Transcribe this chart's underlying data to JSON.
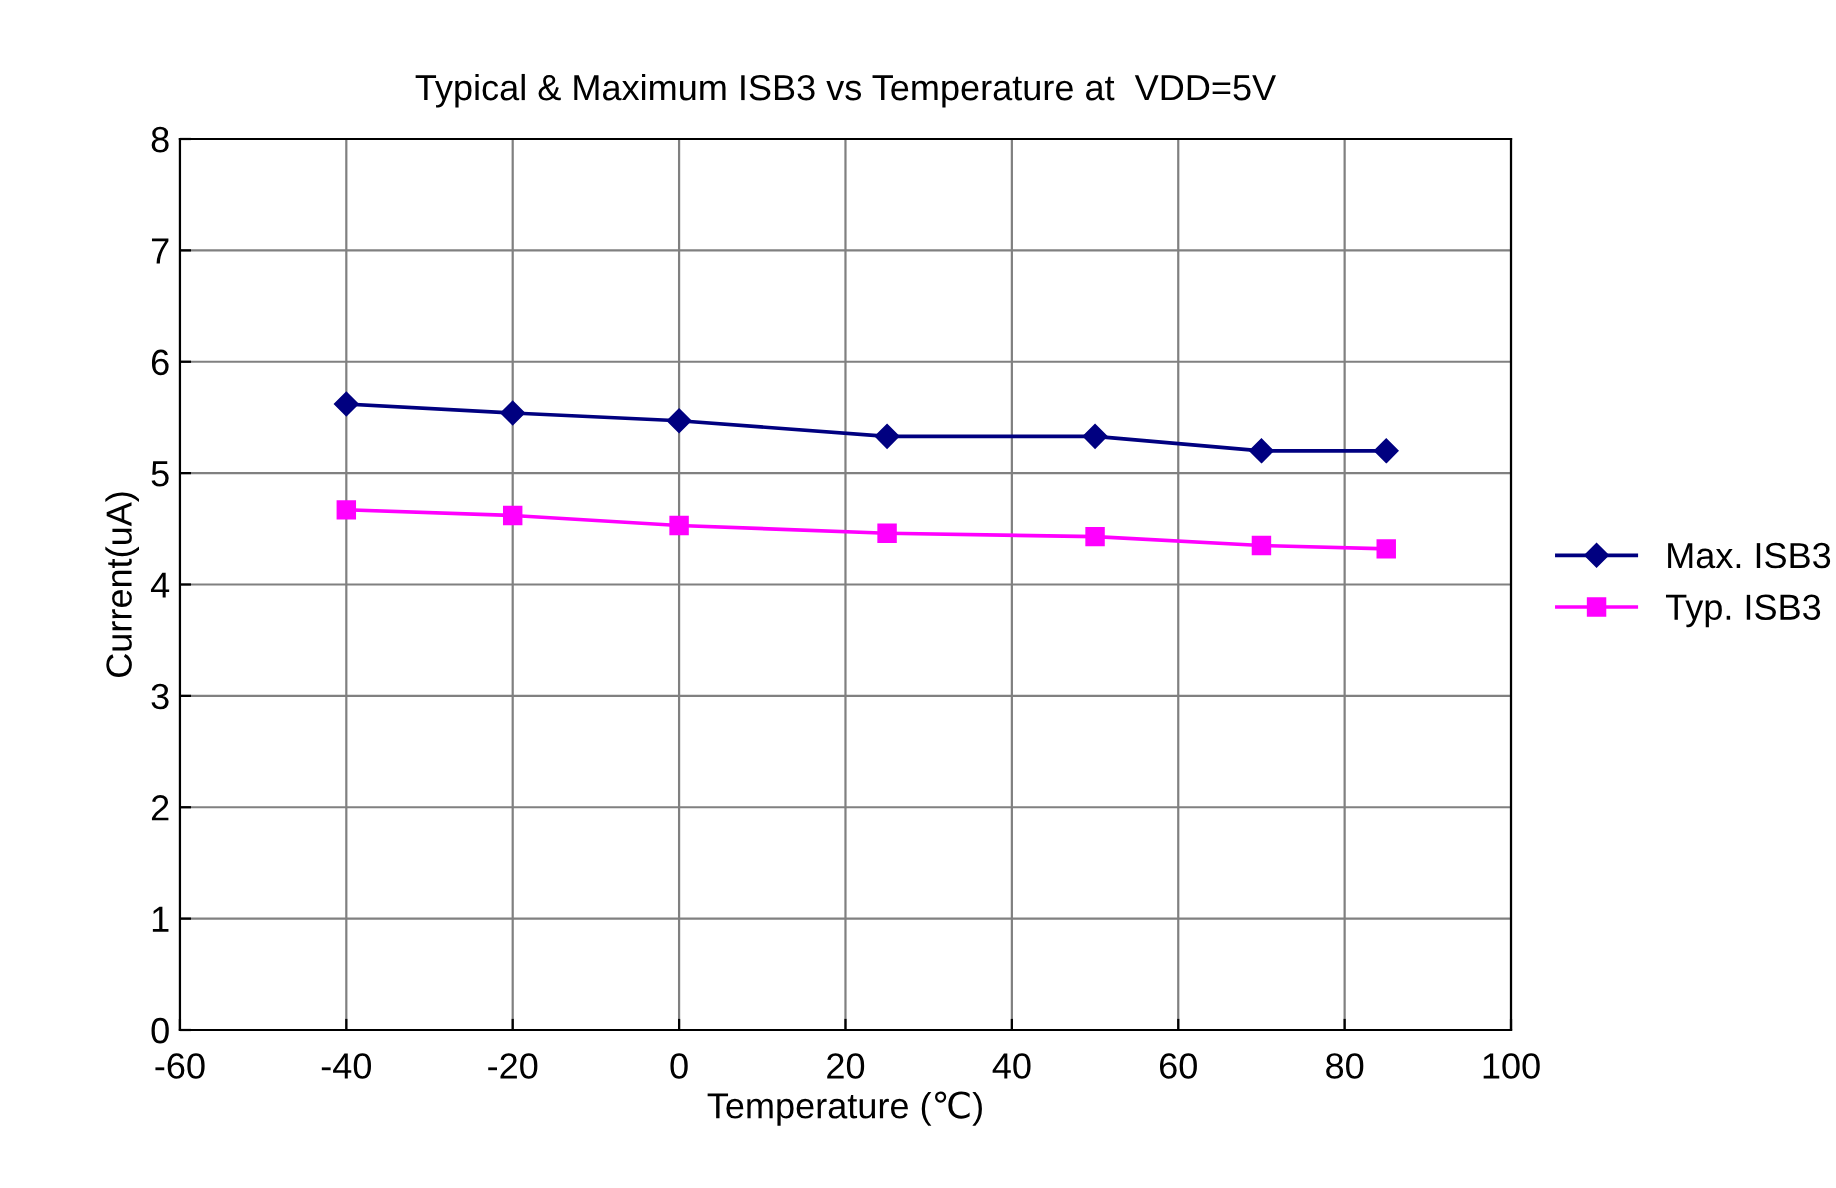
{
  "chart_data": {
    "type": "line",
    "title": "Typical & Maximum ISB3 vs Temperature at  VDD=5V",
    "xlabel": "Temperature (℃)",
    "ylabel": "Current(uA)",
    "x": [
      -40,
      -20,
      0,
      25,
      50,
      70,
      85
    ],
    "series": [
      {
        "name": "Max. ISB3",
        "color": "#000080",
        "marker": "diamond",
        "values": [
          5.62,
          5.54,
          5.47,
          5.33,
          5.33,
          5.2,
          5.2
        ]
      },
      {
        "name": "Typ. ISB3",
        "color": "#ff00ff",
        "marker": "square",
        "values": [
          4.67,
          4.62,
          4.53,
          4.46,
          4.43,
          4.35,
          4.32
        ]
      }
    ],
    "xlim": [
      -60,
      100
    ],
    "xticks": [
      -60,
      -40,
      -20,
      0,
      20,
      40,
      60,
      80,
      100
    ],
    "ylim": [
      0,
      8
    ],
    "yticks": [
      0,
      1,
      2,
      3,
      4,
      5,
      6,
      7,
      8
    ],
    "grid": true,
    "legend": "right",
    "line_style": "solid"
  }
}
